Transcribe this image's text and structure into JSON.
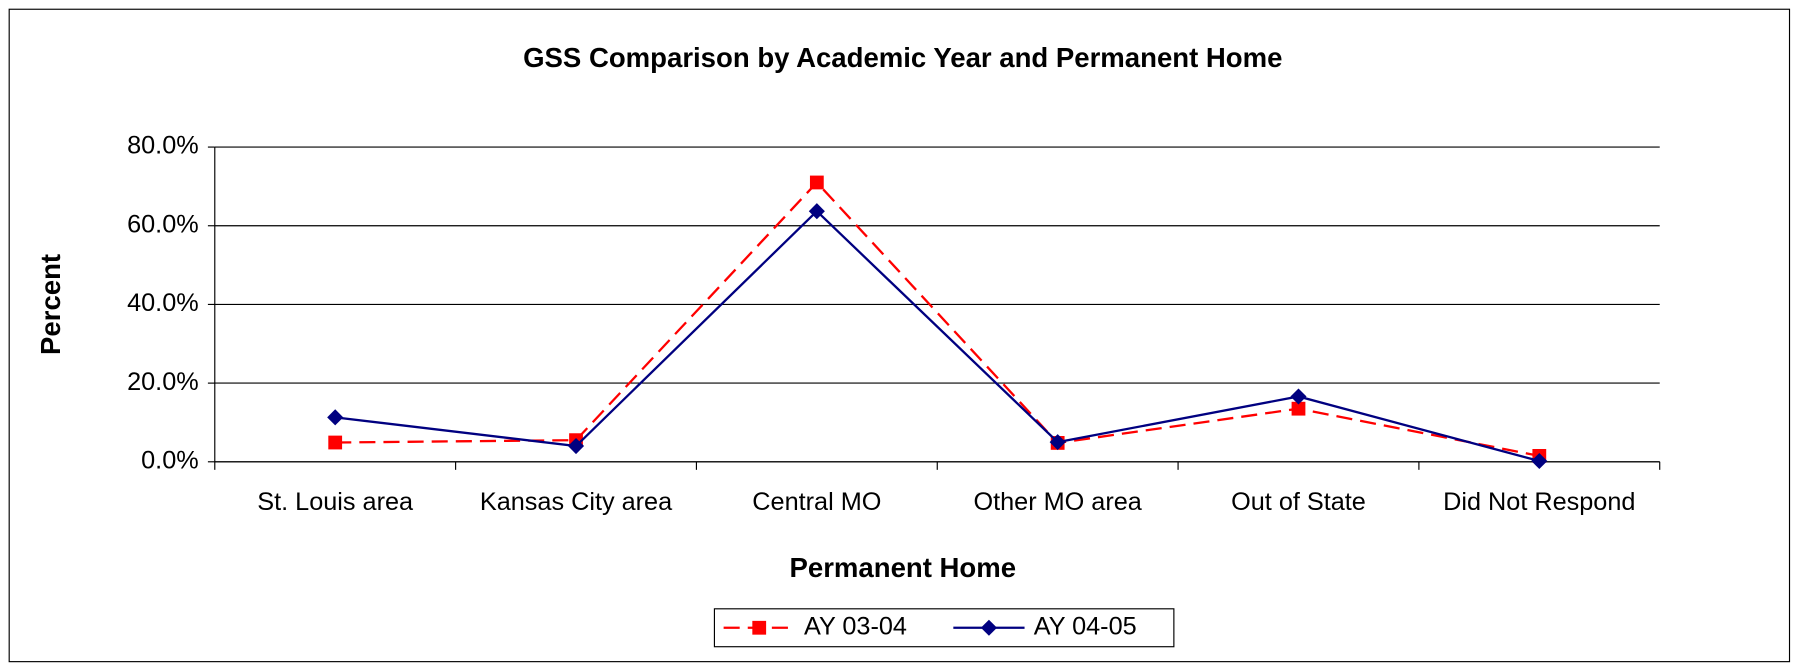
{
  "chart_data": {
    "type": "line",
    "title": "GSS Comparison by Academic Year and Permanent Home",
    "x_label": "Permanent Home",
    "y_label": "Percent",
    "categories": [
      "St. Louis area",
      "Kansas City area",
      "Central MO",
      "Other MO area",
      "Out of State",
      "Did Not Respond"
    ],
    "series": [
      {
        "name": "AY 03-04",
        "color": "#ff0000",
        "dash": true,
        "marker": "square",
        "values": [
          4.9,
          5.5,
          71.0,
          4.8,
          13.5,
          1.5
        ]
      },
      {
        "name": "AY 04-05",
        "color": "#000080",
        "dash": false,
        "marker": "diamond",
        "values": [
          11.3,
          4.0,
          63.7,
          5.0,
          16.6,
          0.2
        ]
      }
    ],
    "ylim": [
      0,
      80
    ],
    "yticks": [
      {
        "value": 0,
        "label": "0.0%"
      },
      {
        "value": 20,
        "label": "20.0%"
      },
      {
        "value": 40,
        "label": "40.0%"
      },
      {
        "value": 60,
        "label": "60.0%"
      },
      {
        "value": 80,
        "label": "80.0%"
      }
    ],
    "grid": true,
    "legend": "bottom"
  }
}
